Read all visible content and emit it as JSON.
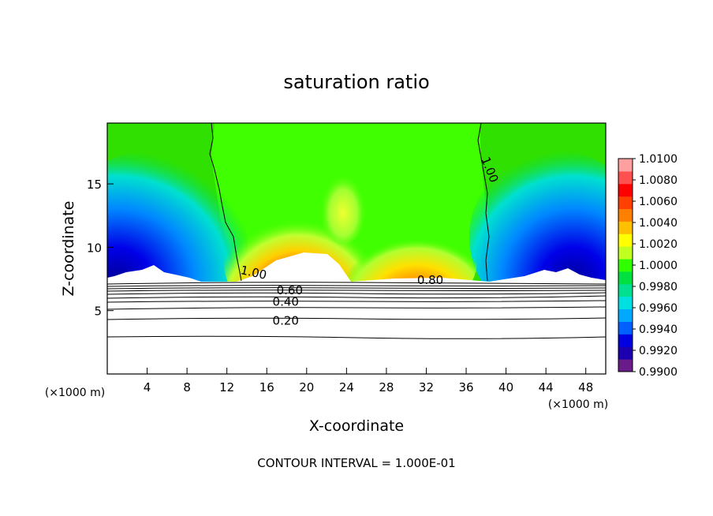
{
  "chart_data": {
    "type": "heatmap",
    "title": "saturation ratio",
    "xlabel": "X-coordinate",
    "ylabel": "Z-coordinate",
    "x_unit_left": "(×1000 m)",
    "x_unit_right": "(×1000 m)",
    "xlim": [
      0,
      50
    ],
    "ylim": [
      0,
      19.8
    ],
    "x_ticks": [
      "4",
      "8",
      "12",
      "16",
      "20",
      "24",
      "28",
      "32",
      "36",
      "40",
      "44",
      "48"
    ],
    "y_ticks": [
      "5",
      "10",
      "15"
    ],
    "grid": false,
    "legend": "right",
    "colorbar": {
      "labels": [
        "1.0100",
        "1.0080",
        "1.0060",
        "1.0040",
        "1.0020",
        "1.0000",
        "0.9980",
        "0.9960",
        "0.9940",
        "0.9920",
        "0.9900"
      ],
      "min": 0.99,
      "max": 1.01,
      "colors": [
        "#6a1b8a",
        "#1c00b0",
        "#0000e0",
        "#0060ff",
        "#00a8ff",
        "#00e0e0",
        "#00e090",
        "#00e040",
        "#30ff00",
        "#c0ff20",
        "#ffff00",
        "#ffc000",
        "#ff8000",
        "#ff4000",
        "#ff0000",
        "#ff5050",
        "#ffa0a0"
      ]
    },
    "contour_labels": [
      {
        "text": "1.00",
        "x": 14.6,
        "y": 7.7
      },
      {
        "text": "1.00",
        "x": 38.0,
        "y": 16.0
      },
      {
        "text": "0.60",
        "x": 18.3,
        "y": 6.3
      },
      {
        "text": "0.40",
        "x": 17.9,
        "y": 5.4
      },
      {
        "text": "0.20",
        "x": 17.9,
        "y": 3.9
      },
      {
        "text": "0.80",
        "x": 32.4,
        "y": 7.1
      }
    ],
    "contour_interval_label": "CONTOUR INTERVAL = 1.000E-01"
  }
}
